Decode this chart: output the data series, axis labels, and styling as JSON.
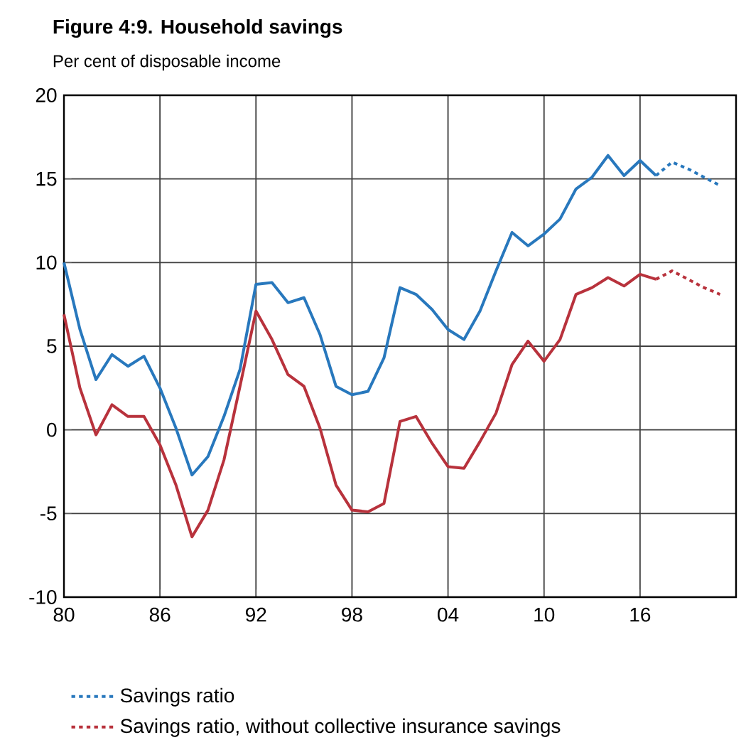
{
  "chart_data": {
    "type": "line",
    "title": "Figure 4:9. Household savings",
    "subtitle": "Per cent of disposable income",
    "xlim": [
      1980,
      2022
    ],
    "ylim": [
      -10,
      20
    ],
    "xticks": [
      {
        "value": 1980,
        "label": "80"
      },
      {
        "value": 1986,
        "label": "86"
      },
      {
        "value": 1992,
        "label": "92"
      },
      {
        "value": 1998,
        "label": "98"
      },
      {
        "value": 2004,
        "label": "04"
      },
      {
        "value": 2010,
        "label": "10"
      },
      {
        "value": 2016,
        "label": "16"
      }
    ],
    "yticks": [
      -10,
      -5,
      0,
      5,
      10,
      15,
      20
    ],
    "grid": true,
    "legend": "bottom",
    "marker": "none",
    "series": [
      {
        "color": "#2878bd",
        "line_style": "solid",
        "x": [
          1980,
          1981,
          1982,
          1983,
          1984,
          1985,
          1986,
          1987,
          1988,
          1989,
          1990,
          1991,
          1992,
          1993,
          1994,
          1995,
          1996,
          1997,
          1998,
          1999,
          2000,
          2001,
          2002,
          2003,
          2004,
          2005,
          2006,
          2007,
          2008,
          2009,
          2010,
          2011,
          2012,
          2013,
          2014,
          2015,
          2016,
          2017
        ],
        "values": [
          10.0,
          6.0,
          3.0,
          4.5,
          3.8,
          4.4,
          2.5,
          0.1,
          -2.7,
          -1.6,
          0.8,
          3.6,
          8.7,
          8.8,
          7.6,
          7.9,
          5.7,
          2.6,
          2.1,
          2.3,
          4.3,
          8.5,
          8.1,
          7.2,
          6.0,
          5.4,
          7.1,
          9.5,
          11.8,
          11.0,
          11.7,
          12.6,
          14.4,
          15.1,
          16.4,
          15.2,
          16.1,
          15.2
        ]
      },
      {
        "name": "Savings ratio",
        "color": "#2878bd",
        "line_style": "dotted",
        "x": [
          2017,
          2018,
          2019,
          2020,
          2021
        ],
        "values": [
          15.2,
          16.0,
          15.6,
          15.1,
          14.6
        ]
      },
      {
        "color": "#b8323c",
        "line_style": "solid",
        "x": [
          1980,
          1981,
          1982,
          1983,
          1984,
          1985,
          1986,
          1987,
          1988,
          1989,
          1990,
          1991,
          1992,
          1993,
          1994,
          1995,
          1996,
          1997,
          1998,
          1999,
          2000,
          2001,
          2002,
          2003,
          2004,
          2005,
          2006,
          2007,
          2008,
          2009,
          2010,
          2011,
          2012,
          2013,
          2014,
          2015,
          2016,
          2017
        ],
        "values": [
          6.9,
          2.5,
          -0.3,
          1.5,
          0.8,
          0.8,
          -0.9,
          -3.3,
          -6.4,
          -4.8,
          -1.8,
          2.6,
          7.1,
          5.4,
          3.3,
          2.6,
          0.1,
          -3.3,
          -4.8,
          -4.9,
          -4.4,
          0.5,
          0.8,
          -0.8,
          -2.2,
          -2.3,
          -0.7,
          1.0,
          3.9,
          5.3,
          4.1,
          5.4,
          8.1,
          8.5,
          9.1,
          8.6,
          9.3,
          9.0
        ]
      },
      {
        "name": "Savings ratio, without collective insurance savings",
        "color": "#b8323c",
        "line_style": "dotted",
        "x": [
          2017,
          2018,
          2019,
          2020,
          2021
        ],
        "values": [
          9.0,
          9.5,
          9.0,
          8.5,
          8.1
        ]
      }
    ]
  }
}
